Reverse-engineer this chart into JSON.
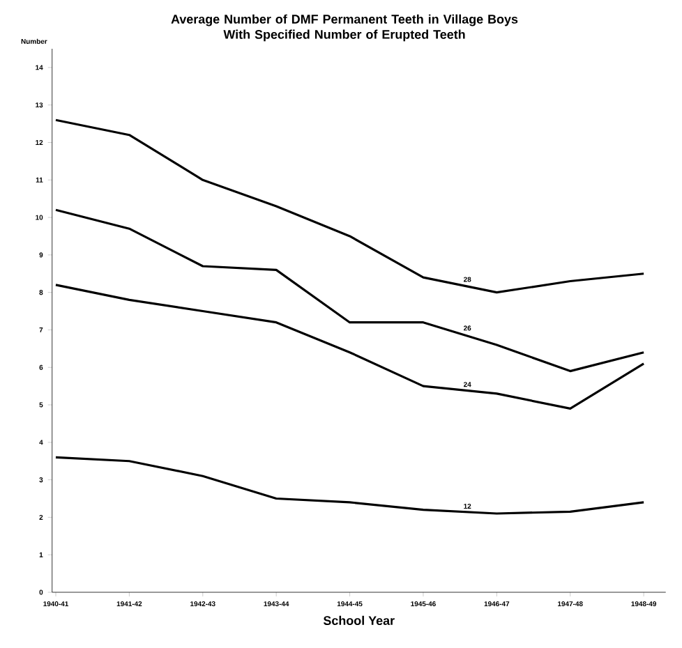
{
  "chart_data": {
    "type": "line",
    "title": "Average Number of DMF Permanent Teeth in Village Boys\nWith Specified Number of Erupted Teeth",
    "xlabel": "School Year",
    "ylabel": "Number",
    "categories": [
      "1940-41",
      "1941-42",
      "1942-43",
      "1943-44",
      "1944-45",
      "1945-46",
      "1946-47",
      "1947-48",
      "1948-49"
    ],
    "series": [
      {
        "name": "28",
        "color": "#000000",
        "values": [
          12.6,
          12.2,
          11.0,
          10.3,
          9.5,
          8.4,
          8.0,
          8.3,
          8.5
        ]
      },
      {
        "name": "26",
        "color": "#000000",
        "values": [
          10.2,
          9.7,
          8.7,
          8.6,
          7.2,
          7.2,
          6.6,
          5.9,
          6.4
        ]
      },
      {
        "name": "24",
        "color": "#000000",
        "values": [
          8.2,
          7.8,
          7.5,
          7.2,
          6.4,
          5.5,
          5.3,
          4.9,
          6.1
        ]
      },
      {
        "name": "12",
        "color": "#000000",
        "values": [
          3.6,
          3.5,
          3.1,
          2.5,
          2.4,
          2.2,
          2.1,
          2.15,
          2.4
        ]
      }
    ],
    "ylim": [
      0,
      14.5
    ],
    "yticks": [
      0,
      1,
      2,
      3,
      4,
      5,
      6,
      7,
      8,
      9,
      10,
      11,
      12,
      13,
      14
    ],
    "grid": false,
    "legend": false,
    "marker": "none",
    "line_style": "solid"
  }
}
